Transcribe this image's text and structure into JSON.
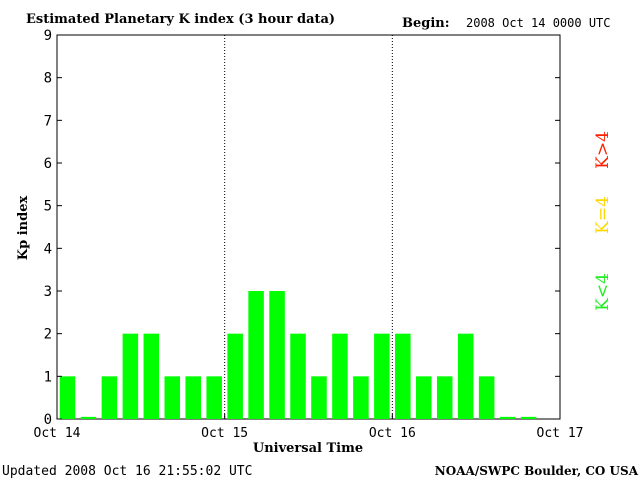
{
  "chart_data": {
    "type": "bar",
    "title": "Estimated Planetary K index (3 hour data)",
    "begin_label": "Begin:",
    "begin_value": "2008 Oct 14 0000 UTC",
    "ylabel": "Kp index",
    "xlabel": "Universal Time",
    "ylim": [
      0,
      9
    ],
    "yticks": [
      "0",
      "1",
      "2",
      "3",
      "4",
      "5",
      "6",
      "7",
      "8",
      "9"
    ],
    "xlim_days": [
      0,
      3
    ],
    "xtick_labels": [
      "Oct 14",
      "Oct 15",
      "Oct 16",
      "Oct 17"
    ],
    "day_separators": [
      "Oct 15",
      "Oct 16"
    ],
    "bar_interval_hours": 3,
    "values": [
      1,
      0.05,
      1,
      2,
      2,
      1,
      1,
      1,
      2,
      3,
      3,
      2,
      1,
      2,
      1,
      2,
      2,
      1,
      1,
      2,
      1,
      0.05,
      0.05
    ],
    "bar_color": "#00ff00",
    "legend": [
      {
        "label": "K>4",
        "color": "#ff2000"
      },
      {
        "label": "K=4",
        "color": "#ffd800"
      },
      {
        "label": "K<4",
        "color": "#22ee22"
      }
    ],
    "legend_placement": "right",
    "grid": false
  },
  "footer": {
    "updated": "Updated 2008 Oct 16 21:55:02 UTC",
    "source": "NOAA/SWPC Boulder, CO USA"
  }
}
